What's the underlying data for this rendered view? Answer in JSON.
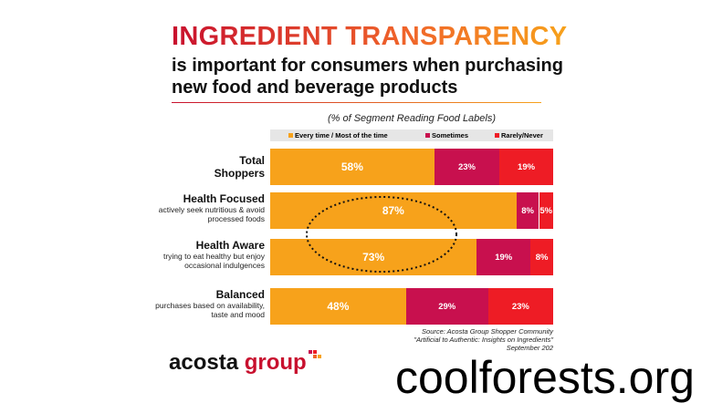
{
  "title": "INGREDIENT TRANSPARENCY",
  "subtitle_line1": "is important for consumers when purchasing",
  "subtitle_line2": "new food and beverage products",
  "chart_data": {
    "type": "bar",
    "orientation": "horizontal",
    "stacked": true,
    "title": "(% of Segment Reading Food Labels)",
    "legend": [
      "Every time / Most of the time",
      "Sometimes",
      "Rarely/Never"
    ],
    "colors": [
      "#f7a21b",
      "#c8104e",
      "#ee1c25"
    ],
    "categories": [
      {
        "name": "Total Shoppers",
        "desc": ""
      },
      {
        "name": "Health Focused",
        "desc": "actively seek nutritious & avoid processed foods"
      },
      {
        "name": "Health Aware",
        "desc": "trying to eat healthy but enjoy occasional indulgences"
      },
      {
        "name": "Balanced",
        "desc": "purchases based on availability, taste and mood"
      }
    ],
    "series": [
      {
        "name": "Every time / Most of the time",
        "values": [
          58,
          87,
          73,
          48
        ]
      },
      {
        "name": "Sometimes",
        "values": [
          23,
          8,
          19,
          29
        ]
      },
      {
        "name": "Rarely/Never",
        "values": [
          19,
          5,
          8,
          23
        ]
      }
    ],
    "xlim": [
      0,
      100
    ]
  },
  "source": [
    "Source: Acosta Group Shopper Community",
    "\"Artificial to Authentic: Insights on Ingredients\"",
    "September 202"
  ],
  "logo": {
    "word1": "acosta",
    "word2": "group"
  },
  "watermark": "coolforests.org"
}
